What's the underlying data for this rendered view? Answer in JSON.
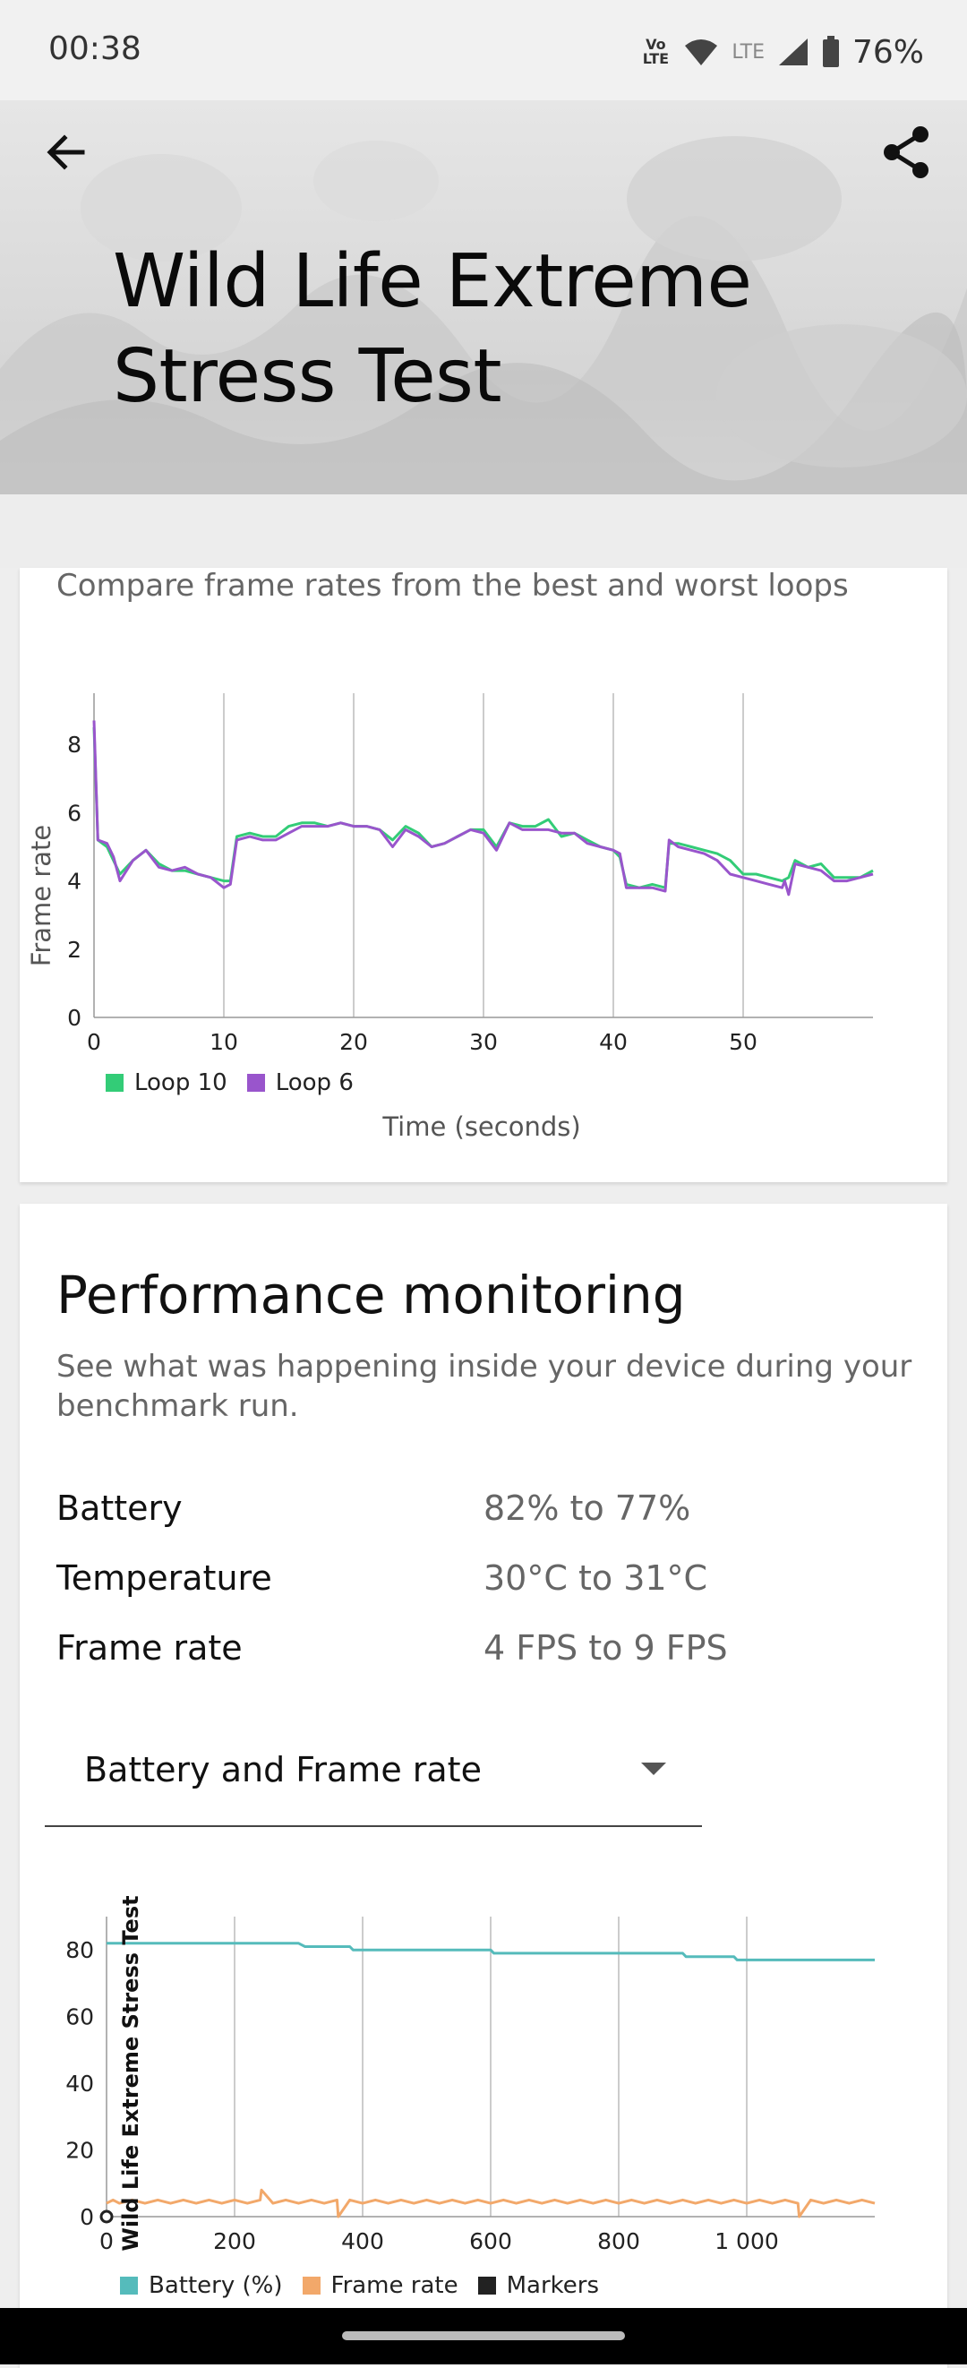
{
  "status": {
    "time": "00:38",
    "volte": "Vo LTE",
    "lte": "LTE",
    "battery_percent": "76%"
  },
  "header": {
    "title": "Wild Life Extreme Stress Test"
  },
  "loop_comparison": {
    "subtitle": "Compare frame rates from the best and worst loops"
  },
  "performance": {
    "title": "Performance monitoring",
    "description": "See what was happening inside your device during your benchmark run.",
    "stats": [
      {
        "label": "Battery",
        "value": "82% to 77%"
      },
      {
        "label": "Temperature",
        "value": "30°C to 31°C"
      },
      {
        "label": "Frame rate",
        "value": "4 FPS to 9 FPS"
      }
    ],
    "dropdown": {
      "selected": "Battery and Frame rate"
    }
  },
  "chart_data": [
    {
      "type": "line",
      "xlabel": "Time (seconds)",
      "ylabel": "Frame rate",
      "xlim": [
        0,
        60
      ],
      "ylim": [
        0,
        9.5
      ],
      "xticks": [
        0,
        10,
        20,
        30,
        40,
        50
      ],
      "yticks": [
        0,
        2,
        4,
        6,
        8
      ],
      "grid": "vertical",
      "legend_position": "bottom-left",
      "series": [
        {
          "name": "Loop 10",
          "color": "#33cc77",
          "x": [
            0,
            0.3,
            1,
            2,
            3,
            4,
            5,
            6,
            7,
            8,
            9,
            10,
            10.5,
            11,
            12,
            13,
            14,
            15,
            16,
            17,
            18,
            19,
            20,
            21,
            22,
            23,
            24,
            25,
            26,
            27,
            28,
            29,
            30,
            31,
            32,
            33,
            34,
            35,
            36,
            37,
            38,
            39,
            40,
            40.5,
            41,
            42,
            43,
            44,
            44.3,
            45,
            46,
            47,
            48,
            49,
            50,
            51,
            52,
            53,
            53.5,
            54,
            55,
            56,
            57,
            58,
            59,
            60
          ],
          "y": [
            8.5,
            5.2,
            5.0,
            4.2,
            4.6,
            4.9,
            4.5,
            4.3,
            4.3,
            4.2,
            4.1,
            4.0,
            4.0,
            5.3,
            5.4,
            5.3,
            5.3,
            5.6,
            5.7,
            5.7,
            5.6,
            5.7,
            5.6,
            5.6,
            5.5,
            5.2,
            5.6,
            5.4,
            5.0,
            5.1,
            5.3,
            5.5,
            5.5,
            5.0,
            5.7,
            5.6,
            5.6,
            5.8,
            5.3,
            5.4,
            5.2,
            5.0,
            4.9,
            4.7,
            3.9,
            3.8,
            3.9,
            3.8,
            5.1,
            5.1,
            5.0,
            4.9,
            4.8,
            4.6,
            4.2,
            4.2,
            4.1,
            4.0,
            4.1,
            4.6,
            4.4,
            4.5,
            4.1,
            4.1,
            4.1,
            4.3
          ]
        },
        {
          "name": "Loop 6",
          "color": "#9955cc",
          "x": [
            0,
            0.3,
            1,
            1.5,
            2,
            3,
            4,
            5,
            6,
            7,
            8,
            9,
            10,
            10.5,
            11,
            12,
            13,
            14,
            15,
            16,
            17,
            18,
            19,
            20,
            21,
            22,
            23,
            24,
            25,
            26,
            27,
            28,
            29,
            30,
            31,
            32,
            33,
            34,
            35,
            36,
            37,
            38,
            39,
            40,
            40.5,
            41,
            42,
            43,
            44,
            44.3,
            45,
            46,
            47,
            48,
            49,
            50,
            51,
            52,
            53,
            53.2,
            53.5,
            54,
            55,
            56,
            57,
            58,
            59,
            60
          ],
          "y": [
            8.7,
            5.2,
            5.1,
            4.7,
            4.0,
            4.6,
            4.9,
            4.4,
            4.3,
            4.4,
            4.2,
            4.1,
            3.8,
            3.9,
            5.2,
            5.3,
            5.2,
            5.2,
            5.4,
            5.6,
            5.6,
            5.6,
            5.7,
            5.6,
            5.6,
            5.5,
            5.0,
            5.5,
            5.3,
            5.0,
            5.1,
            5.3,
            5.5,
            5.4,
            4.9,
            5.7,
            5.5,
            5.5,
            5.5,
            5.4,
            5.4,
            5.1,
            5.0,
            4.9,
            4.8,
            3.8,
            3.8,
            3.8,
            3.7,
            5.2,
            5.0,
            4.9,
            4.8,
            4.6,
            4.2,
            4.1,
            4.0,
            3.9,
            3.8,
            4.0,
            3.6,
            4.5,
            4.4,
            4.3,
            4.0,
            4.0,
            4.1,
            4.2
          ]
        }
      ]
    },
    {
      "type": "line",
      "ylabel": "Wild Life Extreme Stress Test",
      "xlim": [
        0,
        1200
      ],
      "ylim": [
        0,
        90
      ],
      "xticks": [
        0,
        200,
        400,
        600,
        800,
        1000
      ],
      "xtick_labels": [
        "0",
        "200",
        "400",
        "600",
        "800",
        "1 000"
      ],
      "yticks": [
        0,
        20,
        40,
        60,
        80
      ],
      "grid": "vertical",
      "legend_position": "bottom-left",
      "series": [
        {
          "name": "Battery (%)",
          "color": "#55bbbb",
          "x": [
            0,
            300,
            310,
            380,
            385,
            600,
            605,
            900,
            905,
            980,
            985,
            1200
          ],
          "y": [
            82,
            82,
            81,
            81,
            80,
            80,
            79,
            79,
            78,
            78,
            77,
            77
          ]
        },
        {
          "name": "Frame rate",
          "color": "#f2a86a",
          "x": [
            0,
            10,
            20,
            40,
            60,
            80,
            100,
            120,
            140,
            160,
            180,
            200,
            220,
            240,
            242,
            260,
            280,
            300,
            320,
            340,
            360,
            362,
            380,
            400,
            420,
            440,
            460,
            480,
            500,
            520,
            540,
            560,
            580,
            600,
            620,
            640,
            660,
            680,
            700,
            720,
            740,
            760,
            780,
            800,
            820,
            840,
            860,
            880,
            900,
            920,
            940,
            960,
            980,
            1000,
            1020,
            1040,
            1060,
            1080,
            1082,
            1100,
            1120,
            1140,
            1160,
            1180,
            1200
          ],
          "y": [
            4,
            5,
            4,
            5,
            4,
            5,
            4,
            5,
            4,
            5,
            4,
            5,
            4,
            5,
            8,
            4,
            5,
            4,
            5,
            4,
            5,
            0,
            5,
            4,
            5,
            4,
            5,
            4,
            5,
            4,
            5,
            4,
            5,
            4,
            5,
            4,
            5,
            4,
            5,
            4,
            5,
            4,
            5,
            4,
            5,
            4,
            5,
            4,
            5,
            4,
            5,
            4,
            5,
            4,
            5,
            4,
            5,
            4,
            0,
            5,
            4,
            5,
            4,
            5,
            4
          ]
        },
        {
          "name": "Markers",
          "color": "#222222",
          "x": [
            0
          ],
          "y": [
            0
          ]
        }
      ]
    }
  ]
}
